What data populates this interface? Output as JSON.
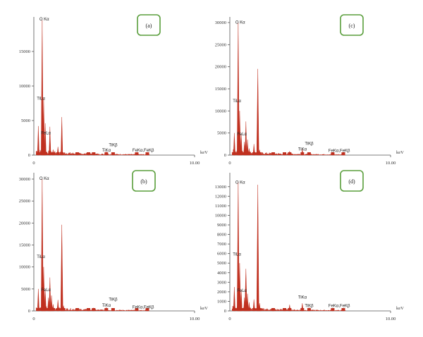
{
  "colors": {
    "spectrum": "#c0301f",
    "badge": "#5a9e3c",
    "axis": "#555555"
  },
  "chart_data": [
    {
      "type": "line",
      "panel": "(a)",
      "xlabel": "keV",
      "xlim": [
        0,
        10.0
      ],
      "x_ticks": [
        "0",
        "10.00"
      ],
      "ylim": [
        0,
        20000
      ],
      "y_ticks": [
        0,
        5000,
        10000,
        15000
      ],
      "series": [
        {
          "values": [
            [
              0.28,
              4200
            ],
            [
              0.52,
              19500
            ],
            [
              0.61,
              8200
            ],
            [
              0.71,
              4600
            ],
            [
              1.0,
              4100
            ],
            [
              1.2,
              800
            ],
            [
              1.5,
              1200
            ],
            [
              1.74,
              5500
            ],
            [
              2.7,
              400
            ],
            [
              3.4,
              250
            ],
            [
              3.72,
              300
            ],
            [
              4.51,
              500
            ],
            [
              4.93,
              250
            ],
            [
              6.4,
              200
            ],
            [
              7.06,
              100
            ]
          ]
        }
      ],
      "annotations": [
        {
          "text": "O Kα",
          "x": 0.52,
          "y": 19500
        },
        {
          "text": "TiLα",
          "x": 0.45,
          "y": 8000
        },
        {
          "text": "FeLα",
          "x": 0.71,
          "y": 3000
        },
        {
          "text": "TiKβ",
          "x": 4.93,
          "y": 1300
        },
        {
          "text": "TiKα",
          "x": 4.51,
          "y": 500
        },
        {
          "text": "FeKα,FeKβ",
          "x": 6.4,
          "y": 500
        }
      ]
    },
    {
      "type": "line",
      "panel": "(c)",
      "xlabel": "keV",
      "xlim": [
        0,
        10.0
      ],
      "x_ticks": [
        "0",
        "10.00"
      ],
      "ylim": [
        0,
        30000
      ],
      "y_ticks": [
        0,
        5000,
        10000,
        15000,
        20000,
        25000,
        30000
      ],
      "series": [
        {
          "values": [
            [
              0.28,
              5000
            ],
            [
              0.52,
              30000
            ],
            [
              0.61,
              10000
            ],
            [
              0.71,
              4800
            ],
            [
              0.91,
              3000
            ],
            [
              1.0,
              7600
            ],
            [
              1.1,
              3500
            ],
            [
              1.2,
              1500
            ],
            [
              1.5,
              2500
            ],
            [
              1.74,
              19500
            ],
            [
              1.85,
              1200
            ],
            [
              2.7,
              600
            ],
            [
              3.4,
              400
            ],
            [
              3.72,
              900
            ],
            [
              4.51,
              1300
            ],
            [
              4.93,
              500
            ],
            [
              6.4,
              400
            ],
            [
              7.06,
              200
            ]
          ]
        }
      ],
      "annotations": [
        {
          "text": "O Kα",
          "x": 0.52,
          "y": 29800
        },
        {
          "text": "TiLα",
          "x": 0.45,
          "y": 12000
        },
        {
          "text": "FeLα",
          "x": 0.71,
          "y": 4500
        },
        {
          "text": "TiKβ",
          "x": 4.93,
          "y": 2300
        },
        {
          "text": "TiKα",
          "x": 4.51,
          "y": 1000
        },
        {
          "text": "FeKα,FeKβ",
          "x": 6.4,
          "y": 700
        }
      ]
    },
    {
      "type": "line",
      "panel": "(b)",
      "xlabel": "keV",
      "xlim": [
        0,
        10.0
      ],
      "x_ticks": [
        "0",
        "10.00"
      ],
      "ylim": [
        0,
        30000
      ],
      "y_ticks": [
        0,
        5000,
        10000,
        15000,
        20000,
        25000,
        30000
      ],
      "series": [
        {
          "values": [
            [
              0.28,
              5000
            ],
            [
              0.52,
              30000
            ],
            [
              0.61,
              10000
            ],
            [
              0.71,
              4800
            ],
            [
              0.91,
              3000
            ],
            [
              1.0,
              7600
            ],
            [
              1.1,
              3500
            ],
            [
              1.2,
              1500
            ],
            [
              1.5,
              2500
            ],
            [
              1.74,
              19600
            ],
            [
              1.85,
              1200
            ],
            [
              2.7,
              600
            ],
            [
              3.4,
              400
            ],
            [
              3.72,
              700
            ],
            [
              4.51,
              800
            ],
            [
              4.93,
              400
            ],
            [
              6.4,
              300
            ],
            [
              7.06,
              150
            ]
          ]
        }
      ],
      "annotations": [
        {
          "text": "O Kα",
          "x": 0.52,
          "y": 29800
        },
        {
          "text": "TiLα",
          "x": 0.45,
          "y": 12000
        },
        {
          "text": "FeLα",
          "x": 0.71,
          "y": 4500
        },
        {
          "text": "TiKβ",
          "x": 4.93,
          "y": 2300
        },
        {
          "text": "TiKα",
          "x": 4.51,
          "y": 1000
        },
        {
          "text": "FeKα,FeKβ",
          "x": 6.4,
          "y": 600
        }
      ]
    },
    {
      "type": "line",
      "panel": "(d)",
      "xlabel": "keV",
      "xlim": [
        0,
        10.0
      ],
      "x_ticks": [
        "0",
        "10.00"
      ],
      "ylim": [
        0,
        13500
      ],
      "y_ticks": [
        0,
        1000,
        2000,
        3000,
        4000,
        5000,
        6000,
        7000,
        8000,
        9000,
        10000,
        11000,
        12000,
        13000
      ],
      "series": [
        {
          "values": [
            [
              0.28,
              2500
            ],
            [
              0.52,
              13500
            ],
            [
              0.61,
              5000
            ],
            [
              0.71,
              2200
            ],
            [
              0.91,
              1400
            ],
            [
              1.0,
              4400
            ],
            [
              1.1,
              1800
            ],
            [
              1.2,
              900
            ],
            [
              1.5,
              1200
            ],
            [
              1.74,
              13200
            ],
            [
              1.85,
              800
            ],
            [
              2.7,
              300
            ],
            [
              3.4,
              200
            ],
            [
              3.72,
              650
            ],
            [
              4.51,
              800
            ],
            [
              4.93,
              350
            ],
            [
              6.4,
              250
            ],
            [
              7.06,
              120
            ]
          ]
        }
      ],
      "annotations": [
        {
          "text": "O Kα",
          "x": 0.52,
          "y": 13300
        },
        {
          "text": "TiLα",
          "x": 0.45,
          "y": 5800
        },
        {
          "text": "FeLα",
          "x": 0.71,
          "y": 2000
        },
        {
          "text": "TiKα",
          "x": 4.51,
          "y": 1300
        },
        {
          "text": "TiKβ",
          "x": 4.93,
          "y": 400
        },
        {
          "text": "FeKα,FeKβ",
          "x": 6.4,
          "y": 400
        }
      ]
    }
  ]
}
